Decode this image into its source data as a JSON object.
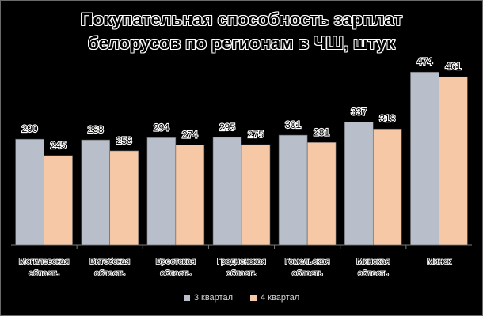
{
  "chart_data": {
    "type": "bar",
    "title_lines": [
      "Покупательная способность зарплат",
      "белорусов по регионам в ЧШ, штук"
    ],
    "categories": [
      [
        "Могилевская",
        "область"
      ],
      [
        "Витебская",
        "область"
      ],
      [
        "Брестская",
        "область"
      ],
      [
        "Гродненская",
        "область"
      ],
      [
        "Гомельская",
        "область"
      ],
      [
        "Минская",
        "область"
      ],
      [
        "Минск"
      ]
    ],
    "series": [
      {
        "name": "3 квартал",
        "color": "#b8bfca",
        "values": [
          290,
          288,
          294,
          295,
          301,
          337,
          474
        ]
      },
      {
        "name": "4 квартал",
        "color": "#f6c8a6",
        "values": [
          245,
          258,
          274,
          275,
          281,
          318,
          461
        ]
      }
    ],
    "ylim": [
      0,
      520
    ],
    "grid": false,
    "legend": "bottom"
  }
}
